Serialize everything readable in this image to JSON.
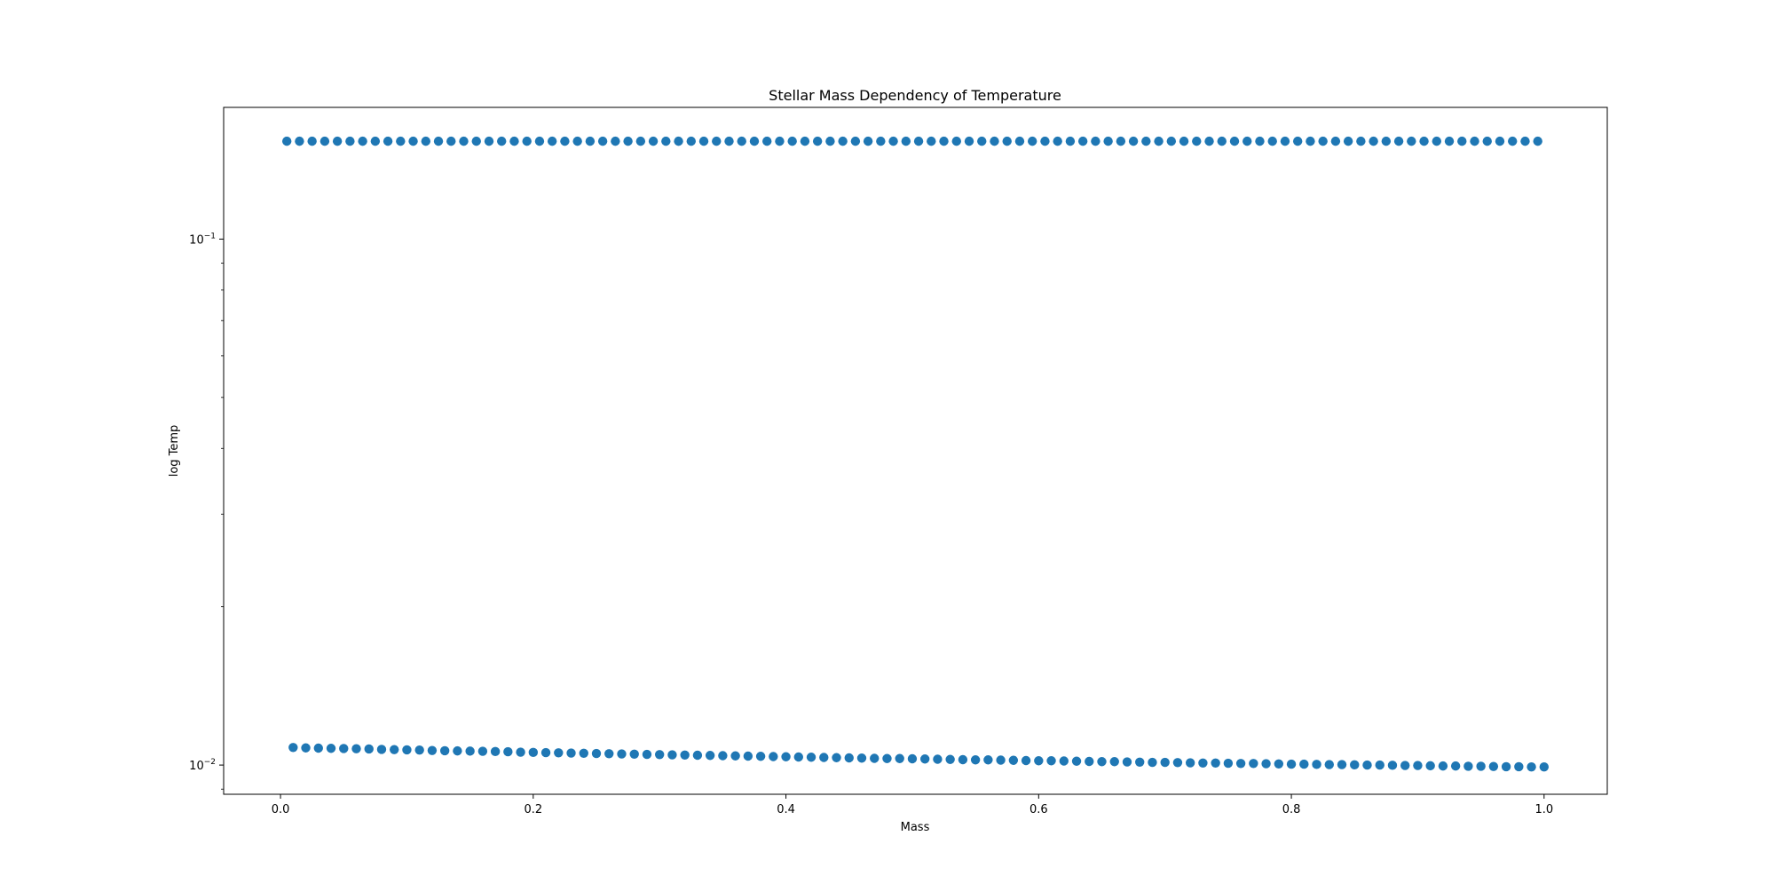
{
  "chart_data": {
    "type": "scatter",
    "title": "Stellar Mass Dependency of Temperature",
    "xlabel": "Mass",
    "ylabel": "log Temp",
    "xlim": [
      -0.045,
      1.05
    ],
    "ylim": [
      0.0088,
      0.178
    ],
    "yscale": "log",
    "grid": false,
    "legend": "none",
    "x_ticks": [
      0.0,
      0.2,
      0.4,
      0.6,
      0.8,
      1.0
    ],
    "x_tick_labels": [
      "0.0",
      "0.2",
      "0.4",
      "0.6",
      "0.8",
      "1.0"
    ],
    "y_major_ticks": [
      0.01,
      0.1
    ],
    "y_tick_labels": [
      {
        "base": "10",
        "exp": "−2"
      },
      {
        "base": "10",
        "exp": "−1"
      }
    ],
    "y_minor_ticks": [
      0.009,
      0.02,
      0.03,
      0.04,
      0.05,
      0.06,
      0.07,
      0.08,
      0.09
    ],
    "marker_color": "#1f77b4",
    "series": [
      {
        "values": [
          {
            "x": 0.005,
            "y": 0.1535
          },
          {
            "x": 0.015,
            "y": 0.1535
          },
          {
            "x": 0.025,
            "y": 0.1535
          },
          {
            "x": 0.035,
            "y": 0.1535
          },
          {
            "x": 0.045,
            "y": 0.1535
          },
          {
            "x": 0.055,
            "y": 0.1535
          },
          {
            "x": 0.065,
            "y": 0.1535
          },
          {
            "x": 0.075,
            "y": 0.1535
          },
          {
            "x": 0.085,
            "y": 0.1535
          },
          {
            "x": 0.095,
            "y": 0.1535
          },
          {
            "x": 0.105,
            "y": 0.1535
          },
          {
            "x": 0.115,
            "y": 0.1535
          },
          {
            "x": 0.125,
            "y": 0.1535
          },
          {
            "x": 0.135,
            "y": 0.1535
          },
          {
            "x": 0.145,
            "y": 0.1535
          },
          {
            "x": 0.155,
            "y": 0.1535
          },
          {
            "x": 0.165,
            "y": 0.1535
          },
          {
            "x": 0.175,
            "y": 0.1535
          },
          {
            "x": 0.185,
            "y": 0.1535
          },
          {
            "x": 0.195,
            "y": 0.1535
          },
          {
            "x": 0.205,
            "y": 0.1535
          },
          {
            "x": 0.215,
            "y": 0.1535
          },
          {
            "x": 0.225,
            "y": 0.1535
          },
          {
            "x": 0.235,
            "y": 0.1535
          },
          {
            "x": 0.245,
            "y": 0.1535
          },
          {
            "x": 0.255,
            "y": 0.1535
          },
          {
            "x": 0.265,
            "y": 0.1535
          },
          {
            "x": 0.275,
            "y": 0.1535
          },
          {
            "x": 0.285,
            "y": 0.1535
          },
          {
            "x": 0.295,
            "y": 0.1535
          },
          {
            "x": 0.305,
            "y": 0.1535
          },
          {
            "x": 0.315,
            "y": 0.1535
          },
          {
            "x": 0.325,
            "y": 0.1535
          },
          {
            "x": 0.335,
            "y": 0.1535
          },
          {
            "x": 0.345,
            "y": 0.1535
          },
          {
            "x": 0.355,
            "y": 0.1535
          },
          {
            "x": 0.365,
            "y": 0.1535
          },
          {
            "x": 0.375,
            "y": 0.1535
          },
          {
            "x": 0.385,
            "y": 0.1535
          },
          {
            "x": 0.395,
            "y": 0.1535
          },
          {
            "x": 0.405,
            "y": 0.1535
          },
          {
            "x": 0.415,
            "y": 0.1535
          },
          {
            "x": 0.425,
            "y": 0.1535
          },
          {
            "x": 0.435,
            "y": 0.1535
          },
          {
            "x": 0.445,
            "y": 0.1535
          },
          {
            "x": 0.455,
            "y": 0.1535
          },
          {
            "x": 0.465,
            "y": 0.1535
          },
          {
            "x": 0.475,
            "y": 0.1535
          },
          {
            "x": 0.485,
            "y": 0.1535
          },
          {
            "x": 0.495,
            "y": 0.1535
          },
          {
            "x": 0.505,
            "y": 0.1535
          },
          {
            "x": 0.515,
            "y": 0.1535
          },
          {
            "x": 0.525,
            "y": 0.1535
          },
          {
            "x": 0.535,
            "y": 0.1535
          },
          {
            "x": 0.545,
            "y": 0.1535
          },
          {
            "x": 0.555,
            "y": 0.1535
          },
          {
            "x": 0.565,
            "y": 0.1535
          },
          {
            "x": 0.575,
            "y": 0.1535
          },
          {
            "x": 0.585,
            "y": 0.1535
          },
          {
            "x": 0.595,
            "y": 0.1535
          },
          {
            "x": 0.605,
            "y": 0.1535
          },
          {
            "x": 0.615,
            "y": 0.1535
          },
          {
            "x": 0.625,
            "y": 0.1535
          },
          {
            "x": 0.635,
            "y": 0.1535
          },
          {
            "x": 0.645,
            "y": 0.1535
          },
          {
            "x": 0.655,
            "y": 0.1535
          },
          {
            "x": 0.665,
            "y": 0.1535
          },
          {
            "x": 0.675,
            "y": 0.1535
          },
          {
            "x": 0.685,
            "y": 0.1535
          },
          {
            "x": 0.695,
            "y": 0.1535
          },
          {
            "x": 0.705,
            "y": 0.1535
          },
          {
            "x": 0.715,
            "y": 0.1535
          },
          {
            "x": 0.725,
            "y": 0.1535
          },
          {
            "x": 0.735,
            "y": 0.1535
          },
          {
            "x": 0.745,
            "y": 0.1535
          },
          {
            "x": 0.755,
            "y": 0.1535
          },
          {
            "x": 0.765,
            "y": 0.1535
          },
          {
            "x": 0.775,
            "y": 0.1535
          },
          {
            "x": 0.785,
            "y": 0.1535
          },
          {
            "x": 0.795,
            "y": 0.1535
          },
          {
            "x": 0.805,
            "y": 0.1535
          },
          {
            "x": 0.815,
            "y": 0.1535
          },
          {
            "x": 0.825,
            "y": 0.1535
          },
          {
            "x": 0.835,
            "y": 0.1535
          },
          {
            "x": 0.845,
            "y": 0.1535
          },
          {
            "x": 0.855,
            "y": 0.1535
          },
          {
            "x": 0.865,
            "y": 0.1535
          },
          {
            "x": 0.875,
            "y": 0.1535
          },
          {
            "x": 0.885,
            "y": 0.1535
          },
          {
            "x": 0.895,
            "y": 0.1535
          },
          {
            "x": 0.905,
            "y": 0.1535
          },
          {
            "x": 0.915,
            "y": 0.1535
          },
          {
            "x": 0.925,
            "y": 0.1535
          },
          {
            "x": 0.935,
            "y": 0.1535
          },
          {
            "x": 0.945,
            "y": 0.1535
          },
          {
            "x": 0.955,
            "y": 0.1535
          },
          {
            "x": 0.965,
            "y": 0.1535
          },
          {
            "x": 0.975,
            "y": 0.1535
          },
          {
            "x": 0.985,
            "y": 0.1535
          },
          {
            "x": 0.995,
            "y": 0.1535
          }
        ]
      },
      {
        "values": [
          {
            "x": 0.01,
            "y": 0.0108
          },
          {
            "x": 0.02,
            "y": 0.01078
          },
          {
            "x": 0.03,
            "y": 0.01077
          },
          {
            "x": 0.04,
            "y": 0.01076
          },
          {
            "x": 0.05,
            "y": 0.01075
          },
          {
            "x": 0.06,
            "y": 0.01074
          },
          {
            "x": 0.07,
            "y": 0.01073
          },
          {
            "x": 0.08,
            "y": 0.01071
          },
          {
            "x": 0.09,
            "y": 0.0107
          },
          {
            "x": 0.1,
            "y": 0.01069
          },
          {
            "x": 0.11,
            "y": 0.01068
          },
          {
            "x": 0.12,
            "y": 0.01066
          },
          {
            "x": 0.13,
            "y": 0.01065
          },
          {
            "x": 0.14,
            "y": 0.01064
          },
          {
            "x": 0.15,
            "y": 0.01063
          },
          {
            "x": 0.16,
            "y": 0.01062
          },
          {
            "x": 0.17,
            "y": 0.01061
          },
          {
            "x": 0.18,
            "y": 0.0106
          },
          {
            "x": 0.19,
            "y": 0.01058
          },
          {
            "x": 0.2,
            "y": 0.01057
          },
          {
            "x": 0.21,
            "y": 0.01056
          },
          {
            "x": 0.22,
            "y": 0.01055
          },
          {
            "x": 0.23,
            "y": 0.01054
          },
          {
            "x": 0.24,
            "y": 0.01053
          },
          {
            "x": 0.25,
            "y": 0.01052
          },
          {
            "x": 0.26,
            "y": 0.01051
          },
          {
            "x": 0.27,
            "y": 0.0105
          },
          {
            "x": 0.28,
            "y": 0.01049
          },
          {
            "x": 0.29,
            "y": 0.01048
          },
          {
            "x": 0.3,
            "y": 0.01047
          },
          {
            "x": 0.31,
            "y": 0.01046
          },
          {
            "x": 0.32,
            "y": 0.01045
          },
          {
            "x": 0.33,
            "y": 0.01044
          },
          {
            "x": 0.34,
            "y": 0.01043
          },
          {
            "x": 0.35,
            "y": 0.01042
          },
          {
            "x": 0.36,
            "y": 0.01041
          },
          {
            "x": 0.37,
            "y": 0.0104
          },
          {
            "x": 0.38,
            "y": 0.01039
          },
          {
            "x": 0.39,
            "y": 0.01038
          },
          {
            "x": 0.4,
            "y": 0.01037
          },
          {
            "x": 0.41,
            "y": 0.01036
          },
          {
            "x": 0.42,
            "y": 0.01035
          },
          {
            "x": 0.43,
            "y": 0.01034
          },
          {
            "x": 0.44,
            "y": 0.01033
          },
          {
            "x": 0.45,
            "y": 0.01032
          },
          {
            "x": 0.46,
            "y": 0.01031
          },
          {
            "x": 0.47,
            "y": 0.0103
          },
          {
            "x": 0.48,
            "y": 0.01029
          },
          {
            "x": 0.49,
            "y": 0.01029
          },
          {
            "x": 0.5,
            "y": 0.01028
          },
          {
            "x": 0.51,
            "y": 0.01027
          },
          {
            "x": 0.52,
            "y": 0.01026
          },
          {
            "x": 0.53,
            "y": 0.01025
          },
          {
            "x": 0.54,
            "y": 0.01024
          },
          {
            "x": 0.55,
            "y": 0.01023
          },
          {
            "x": 0.56,
            "y": 0.01023
          },
          {
            "x": 0.57,
            "y": 0.01022
          },
          {
            "x": 0.58,
            "y": 0.01021
          },
          {
            "x": 0.59,
            "y": 0.0102
          },
          {
            "x": 0.6,
            "y": 0.01019
          },
          {
            "x": 0.61,
            "y": 0.01019
          },
          {
            "x": 0.62,
            "y": 0.01018
          },
          {
            "x": 0.63,
            "y": 0.01017
          },
          {
            "x": 0.64,
            "y": 0.01016
          },
          {
            "x": 0.65,
            "y": 0.01015
          },
          {
            "x": 0.66,
            "y": 0.01015
          },
          {
            "x": 0.67,
            "y": 0.01014
          },
          {
            "x": 0.68,
            "y": 0.01013
          },
          {
            "x": 0.69,
            "y": 0.01012
          },
          {
            "x": 0.7,
            "y": 0.01012
          },
          {
            "x": 0.71,
            "y": 0.01011
          },
          {
            "x": 0.72,
            "y": 0.0101
          },
          {
            "x": 0.73,
            "y": 0.01009
          },
          {
            "x": 0.74,
            "y": 0.01009
          },
          {
            "x": 0.75,
            "y": 0.01008
          },
          {
            "x": 0.76,
            "y": 0.01007
          },
          {
            "x": 0.77,
            "y": 0.01007
          },
          {
            "x": 0.78,
            "y": 0.01006
          },
          {
            "x": 0.79,
            "y": 0.01005
          },
          {
            "x": 0.8,
            "y": 0.01004
          },
          {
            "x": 0.81,
            "y": 0.01004
          },
          {
            "x": 0.82,
            "y": 0.01003
          },
          {
            "x": 0.83,
            "y": 0.01002
          },
          {
            "x": 0.84,
            "y": 0.01002
          },
          {
            "x": 0.85,
            "y": 0.01001
          },
          {
            "x": 0.86,
            "y": 0.01
          },
          {
            "x": 0.87,
            "y": 0.01
          },
          {
            "x": 0.88,
            "y": 0.00999
          },
          {
            "x": 0.89,
            "y": 0.00998
          },
          {
            "x": 0.9,
            "y": 0.00998
          },
          {
            "x": 0.91,
            "y": 0.00997
          },
          {
            "x": 0.92,
            "y": 0.00996
          },
          {
            "x": 0.93,
            "y": 0.00996
          },
          {
            "x": 0.94,
            "y": 0.00995
          },
          {
            "x": 0.95,
            "y": 0.00995
          },
          {
            "x": 0.96,
            "y": 0.00994
          },
          {
            "x": 0.97,
            "y": 0.00993
          },
          {
            "x": 0.98,
            "y": 0.00993
          },
          {
            "x": 0.99,
            "y": 0.00992
          },
          {
            "x": 1.0,
            "y": 0.00992
          }
        ]
      }
    ]
  }
}
